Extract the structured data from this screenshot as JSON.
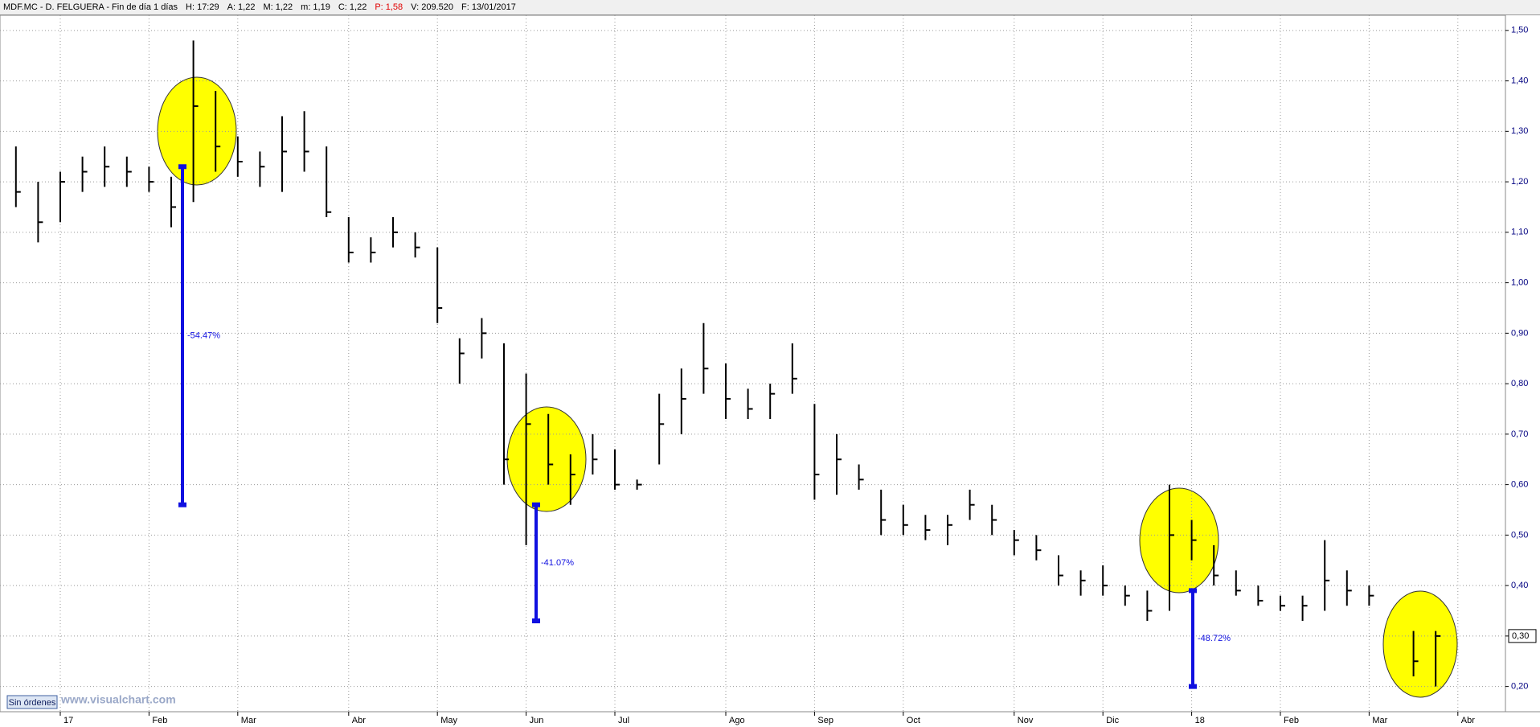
{
  "chart_data": {
    "type": "ohlc",
    "header": [
      "MDF.MC - D. FELGUERA - Fin de día 1 días",
      "H: 17:29",
      "A: 1,22",
      "M: 1,22",
      "m: 1,19",
      "C: 1,22",
      "P: 1,58",
      "V: 209.520",
      "F: 13/01/2017"
    ],
    "categories": [
      null,
      null,
      "17",
      null,
      null,
      null,
      "Feb",
      null,
      null,
      null,
      "Mar",
      null,
      null,
      null,
      null,
      "Abr",
      null,
      null,
      null,
      "May",
      null,
      null,
      null,
      "Jun",
      null,
      null,
      null,
      "Jul",
      null,
      null,
      null,
      null,
      "Ago",
      null,
      null,
      null,
      "Sep",
      null,
      null,
      null,
      "Oct",
      null,
      null,
      null,
      null,
      "Nov",
      null,
      null,
      null,
      "Dic",
      null,
      null,
      null,
      "18",
      null,
      null,
      null,
      "Feb",
      null,
      null,
      null,
      "Mar",
      null,
      null,
      null,
      "Abr"
    ],
    "high": [
      1.27,
      1.2,
      1.22,
      1.25,
      1.27,
      1.25,
      1.23,
      1.21,
      1.48,
      1.38,
      1.29,
      1.26,
      1.33,
      1.34,
      1.27,
      1.13,
      1.09,
      1.13,
      1.1,
      1.07,
      0.89,
      0.93,
      0.88,
      0.82,
      0.74,
      0.66,
      0.7,
      0.67,
      0.61,
      0.78,
      0.83,
      0.92,
      0.84,
      0.79,
      0.8,
      0.88,
      0.76,
      0.7,
      0.64,
      0.59,
      0.56,
      0.54,
      0.54,
      0.59,
      0.56,
      0.51,
      0.5,
      0.46,
      0.43,
      0.44,
      0.4,
      0.39,
      0.6,
      0.53,
      0.48,
      0.43,
      0.4,
      0.38,
      0.38,
      0.49,
      0.43,
      0.4,
      null,
      0.31,
      0.31,
      null
    ],
    "low": [
      1.15,
      1.08,
      1.12,
      1.18,
      1.19,
      1.19,
      1.18,
      1.11,
      1.16,
      1.22,
      1.21,
      1.19,
      1.18,
      1.22,
      1.13,
      1.04,
      1.04,
      1.07,
      1.05,
      0.92,
      0.8,
      0.85,
      0.6,
      0.48,
      0.6,
      0.56,
      0.62,
      0.59,
      0.59,
      0.64,
      0.7,
      0.78,
      0.73,
      0.73,
      0.73,
      0.78,
      0.57,
      0.58,
      0.59,
      0.5,
      0.5,
      0.49,
      0.48,
      0.53,
      0.5,
      0.46,
      0.45,
      0.4,
      0.38,
      0.38,
      0.36,
      0.33,
      0.35,
      0.45,
      0.4,
      0.38,
      0.36,
      0.35,
      0.33,
      0.35,
      0.36,
      0.36,
      null,
      0.22,
      0.2,
      null
    ],
    "close": [
      1.18,
      1.12,
      1.2,
      1.22,
      1.23,
      1.22,
      1.2,
      1.15,
      1.35,
      1.27,
      1.24,
      1.23,
      1.26,
      1.26,
      1.14,
      1.06,
      1.06,
      1.1,
      1.07,
      0.95,
      0.86,
      0.9,
      0.65,
      0.72,
      0.64,
      0.62,
      0.65,
      0.6,
      0.6,
      0.72,
      0.77,
      0.83,
      0.77,
      0.75,
      0.78,
      0.81,
      0.62,
      0.65,
      0.61,
      0.53,
      0.52,
      0.51,
      0.52,
      0.56,
      0.53,
      0.49,
      0.47,
      0.42,
      0.41,
      0.4,
      0.38,
      0.35,
      0.5,
      0.49,
      0.42,
      0.39,
      0.37,
      0.36,
      0.36,
      0.41,
      0.39,
      0.38,
      null,
      0.25,
      0.3,
      null
    ],
    "color": "#000000",
    "ylim": [
      0.15,
      1.53
    ],
    "yticks": [
      {
        "value": 0.2,
        "label": "0,20"
      },
      {
        "value": 0.3,
        "label": "0,30"
      },
      {
        "value": 0.4,
        "label": "0,40"
      },
      {
        "value": 0.5,
        "label": "0,50"
      },
      {
        "value": 0.6,
        "label": "0,60"
      },
      {
        "value": 0.7,
        "label": "0,70"
      },
      {
        "value": 0.8,
        "label": "0,80"
      },
      {
        "value": 0.9,
        "label": "0,90"
      },
      {
        "value": 1.0,
        "label": "1,00"
      },
      {
        "value": 1.1,
        "label": "1,10"
      },
      {
        "value": 1.2,
        "label": "1,20"
      },
      {
        "value": 1.3,
        "label": "1,30"
      },
      {
        "value": 1.4,
        "label": "1,40"
      },
      {
        "value": 1.5,
        "label": "1,50"
      }
    ],
    "last_price": {
      "value": 0.3,
      "label": "0,30"
    },
    "grid": true,
    "annotations": [
      {
        "label": "-54.47%",
        "from": 1.23,
        "to": 0.56,
        "color": "#1010e0"
      },
      {
        "label": "-41.07%",
        "from": 0.56,
        "to": 0.33,
        "color": "#1010e0"
      },
      {
        "label": "-48.72%",
        "from": 0.39,
        "to": 0.2,
        "color": "#1010e0"
      }
    ],
    "button": "Sin órdenes",
    "watermark": "www.visualchart.com"
  }
}
